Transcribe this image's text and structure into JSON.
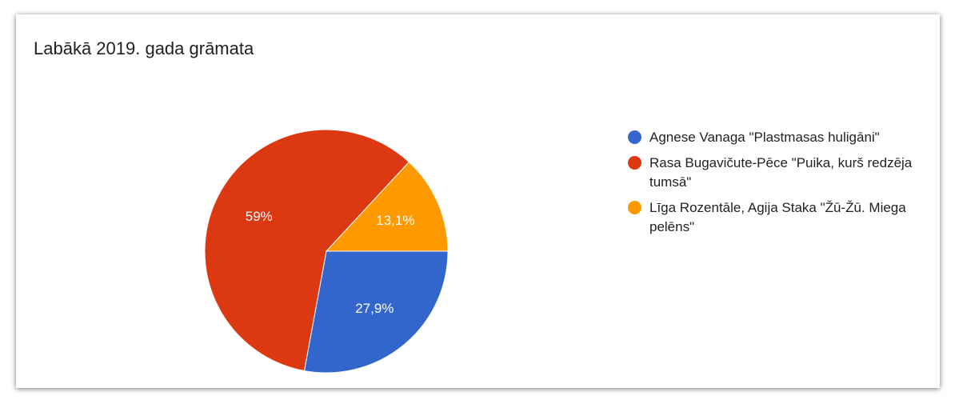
{
  "chart_data": {
    "type": "pie",
    "title": "Labākā 2019. gada grāmata",
    "categories": [
      "Agnese Vanaga \"Plastmasas huligāni\"",
      "Rasa Bugavičute-Pēce \"Puika, kurš redzēja tumsā\"",
      "Līga Rozentāle, Agija Staka \"Žū-Žū. Miega pelēns\""
    ],
    "values": [
      27.9,
      59,
      13.1
    ],
    "value_labels": [
      "27,9%",
      "59%",
      "13,1%"
    ],
    "colors": [
      "#3366cc",
      "#dc3912",
      "#ff9900"
    ],
    "legend": "right"
  }
}
